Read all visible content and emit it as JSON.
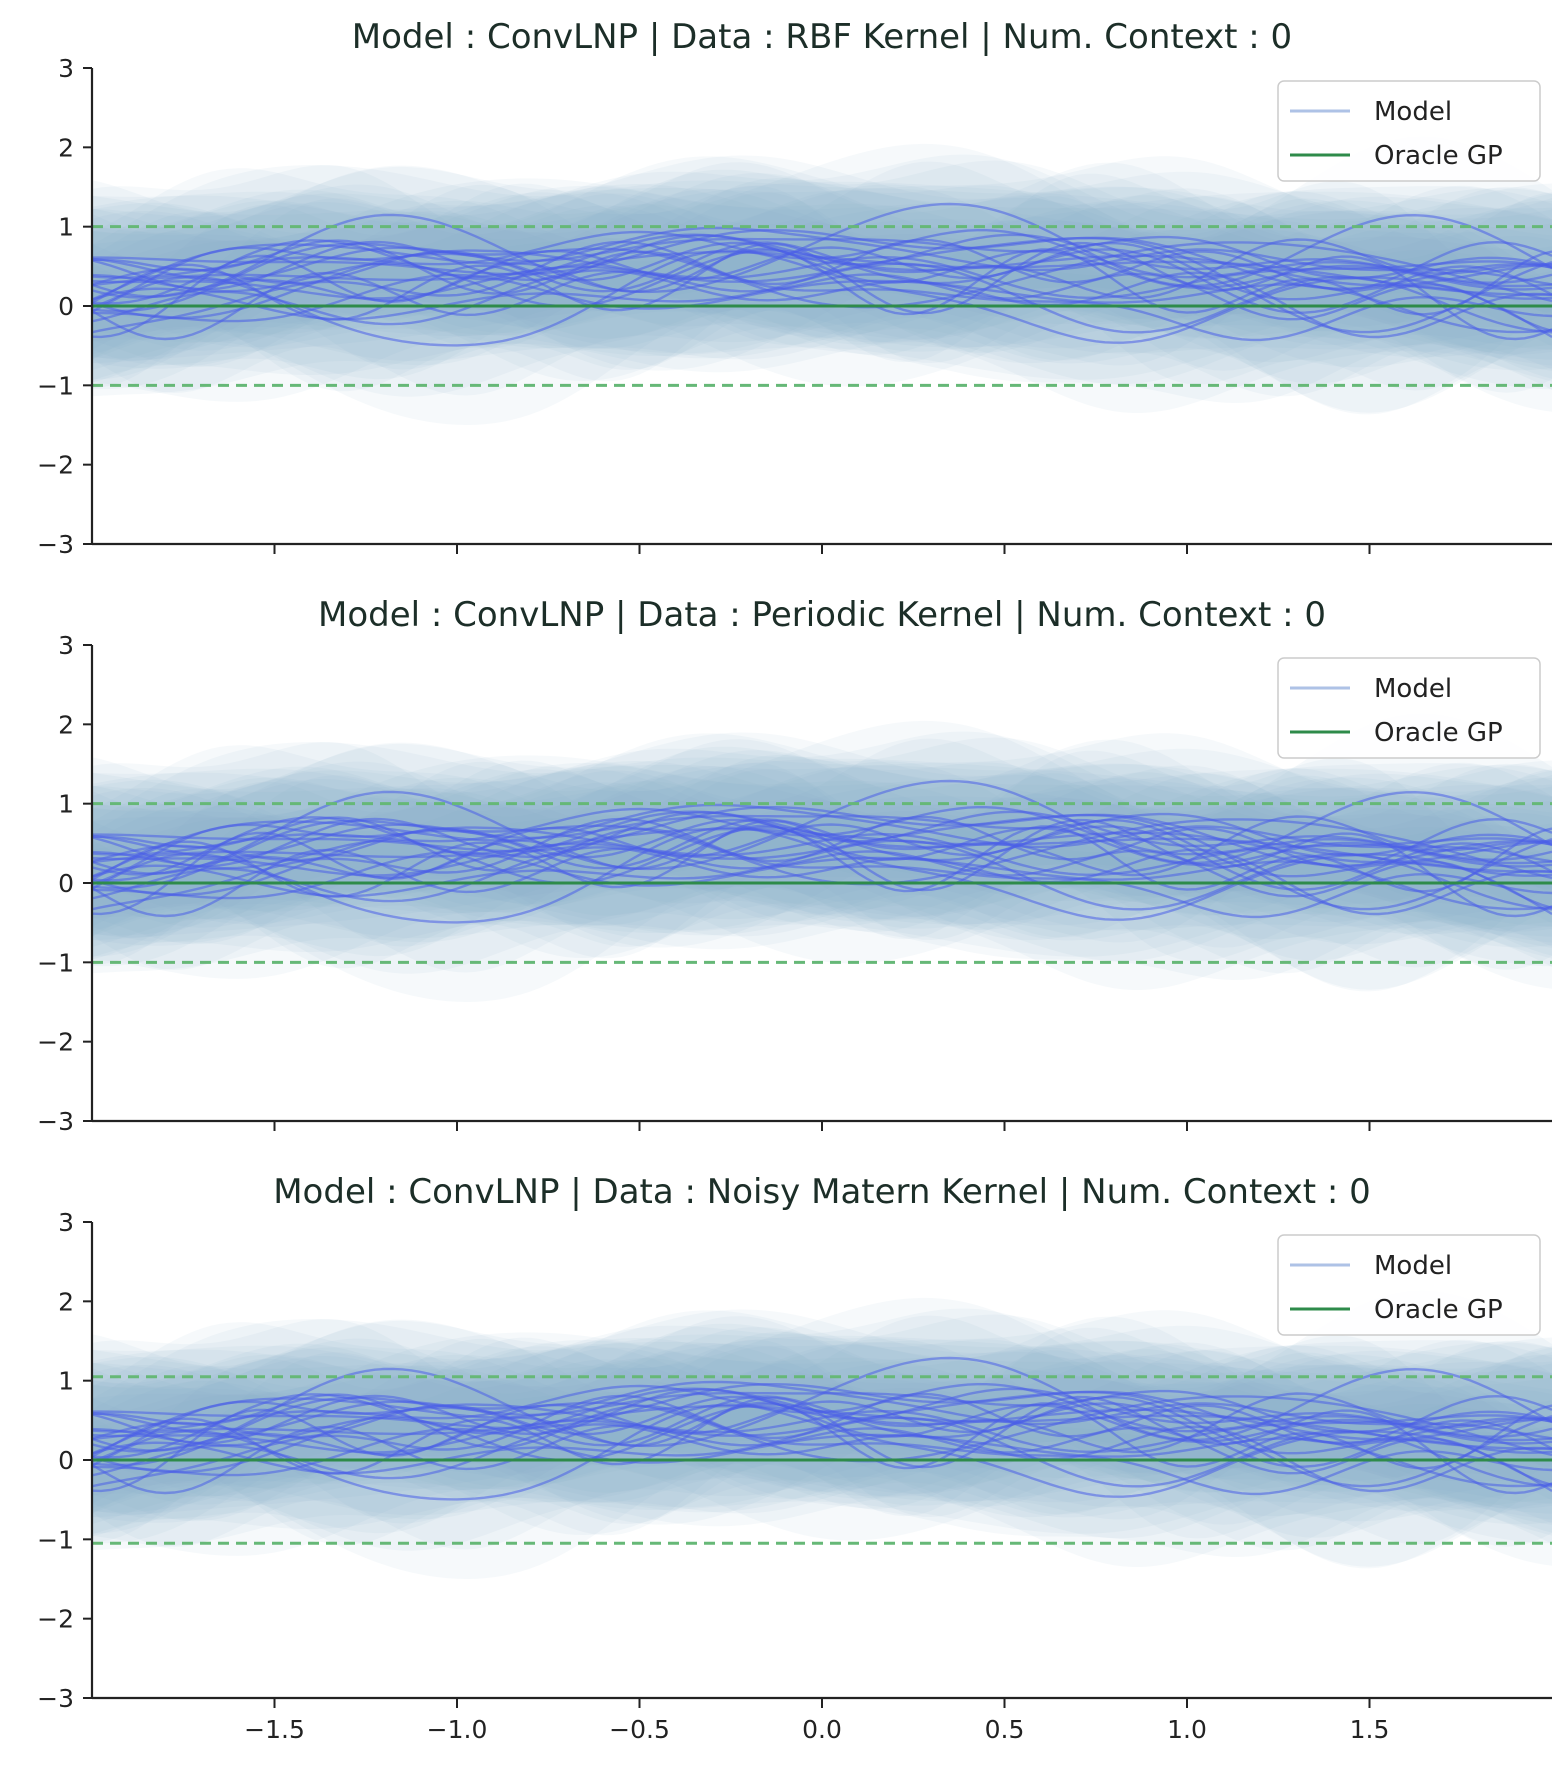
{
  "colors": {
    "model_line": "#4a5ee8",
    "model_band": "#7aa6c8",
    "model_legend": "#aec2e6",
    "oracle": "#2e8b4a",
    "oracle_dashed": "#66b877",
    "axis": "#222222",
    "title": "#1c2e28"
  },
  "legend": {
    "model_label": "Model",
    "oracle_label": "Oracle GP"
  },
  "chart_data": [
    {
      "type": "line",
      "title": "Model : ConvLNP | Data : RBF Kernel | Num. Context : 0",
      "xlabel": "",
      "ylabel": "",
      "xlim": [
        -2.0,
        2.0
      ],
      "ylim": [
        -3,
        3
      ],
      "x_ticks": [
        -1.5,
        -1.0,
        -0.5,
        0.0,
        0.5,
        1.0,
        1.5
      ],
      "x_tick_labels": [
        "−1.5",
        "−1.0",
        "−0.5",
        "0.0",
        "0.5",
        "1.0",
        "1.5"
      ],
      "x_tick_labels_shown": false,
      "y_ticks": [
        -3,
        -2,
        -1,
        0,
        1,
        2,
        3
      ],
      "y_tick_labels": [
        "−3",
        "−2",
        "−1",
        "0",
        "1",
        "2",
        "3"
      ],
      "legend_position": "top-right",
      "grid": false,
      "oracle_mean": 0.0,
      "oracle_std": 1.0,
      "model_band_std": 0.85,
      "series_seed": 11
    },
    {
      "type": "line",
      "title": "Model : ConvLNP | Data : Periodic Kernel | Num. Context : 0",
      "xlabel": "",
      "ylabel": "",
      "xlim": [
        -2.0,
        2.0
      ],
      "ylim": [
        -3,
        3
      ],
      "x_ticks": [
        -1.5,
        -1.0,
        -0.5,
        0.0,
        0.5,
        1.0,
        1.5
      ],
      "x_tick_labels": [
        "−1.5",
        "−1.0",
        "−0.5",
        "0.0",
        "0.5",
        "1.0",
        "1.5"
      ],
      "x_tick_labels_shown": false,
      "y_ticks": [
        -3,
        -2,
        -1,
        0,
        1,
        2,
        3
      ],
      "y_tick_labels": [
        "−3",
        "−2",
        "−1",
        "0",
        "1",
        "2",
        "3"
      ],
      "legend_position": "top-right",
      "grid": false,
      "oracle_mean": 0.0,
      "oracle_std": 1.0,
      "model_band_std": 0.85,
      "series_seed": 11
    },
    {
      "type": "line",
      "title": "Model : ConvLNP | Data : Noisy Matern Kernel | Num. Context : 0",
      "xlabel": "",
      "ylabel": "",
      "xlim": [
        -2.0,
        2.0
      ],
      "ylim": [
        -3,
        3
      ],
      "x_ticks": [
        -1.5,
        -1.0,
        -0.5,
        0.0,
        0.5,
        1.0,
        1.5
      ],
      "x_tick_labels": [
        "−1.5",
        "−1.0",
        "−0.5",
        "0.0",
        "0.5",
        "1.0",
        "1.5"
      ],
      "x_tick_labels_shown": true,
      "y_ticks": [
        -3,
        -2,
        -1,
        0,
        1,
        2,
        3
      ],
      "y_tick_labels": [
        "−3",
        "−2",
        "−1",
        "0",
        "1",
        "2",
        "3"
      ],
      "legend_position": "top-right",
      "grid": false,
      "oracle_mean": 0.0,
      "oracle_std": 1.05,
      "model_band_std": 0.85,
      "series_seed": 11
    }
  ]
}
